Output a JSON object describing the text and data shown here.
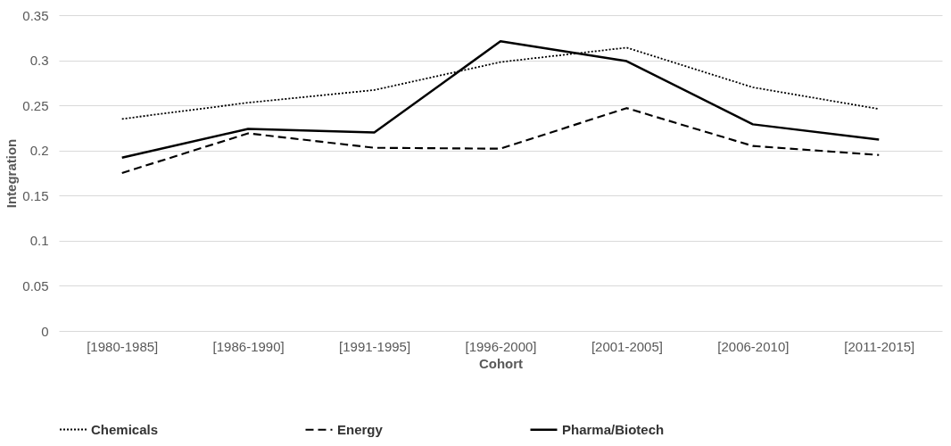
{
  "chart_data": {
    "type": "line",
    "xlabel": "Cohort",
    "ylabel": "Integration",
    "categories": [
      "[1980-1985]",
      "[1986-1990]",
      "[1991-1995]",
      "[1996-2000]",
      "[2001-2005]",
      "[2006-2010]",
      "[2011-2015]"
    ],
    "series": [
      {
        "name": "Chemicals",
        "color": "#000000",
        "line_style": "dotted",
        "values": [
          0.235,
          0.253,
          0.267,
          0.298,
          0.314,
          0.27,
          0.246
        ]
      },
      {
        "name": "Energy",
        "color": "#000000",
        "line_style": "dashed",
        "values": [
          0.175,
          0.219,
          0.203,
          0.202,
          0.247,
          0.205,
          0.195
        ]
      },
      {
        "name": "Pharma/Biotech",
        "color": "#000000",
        "line_style": "solid",
        "values": [
          0.192,
          0.224,
          0.22,
          0.321,
          0.299,
          0.229,
          0.212
        ]
      }
    ],
    "ylim": [
      0,
      0.35
    ],
    "yticks": [
      0,
      0.05,
      0.1,
      0.15,
      0.2,
      0.25,
      0.3,
      0.35
    ],
    "grid": "y",
    "legend": "bottom",
    "marker": "none"
  }
}
